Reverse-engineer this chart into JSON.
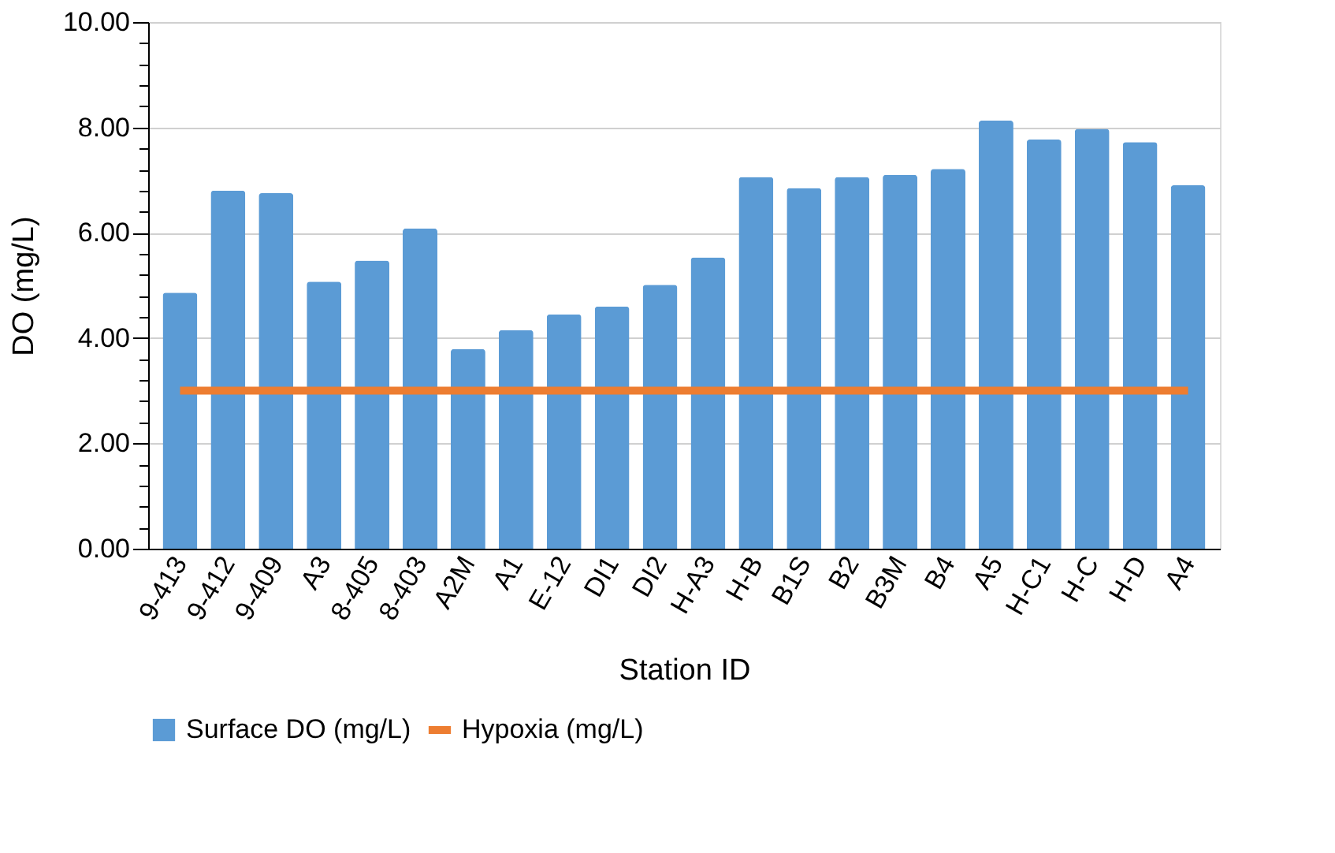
{
  "chart_data": {
    "type": "bar",
    "xlabel": "Station ID",
    "ylabel": "DO (mg/L)",
    "categories": [
      "9-413",
      "9-412",
      "9-409",
      "A3",
      "8-405",
      "8-403",
      "A2M",
      "A1",
      "E-12",
      "DI1",
      "DI2",
      "H-A3",
      "H-B",
      "B1S",
      "B2",
      "B3M",
      "B4",
      "A5",
      "H-C1",
      "H-C",
      "H-D",
      "A4"
    ],
    "series": [
      {
        "name": "Surface DO (mg/L)",
        "color": "#5b9bd5",
        "values": [
          4.86,
          6.8,
          6.75,
          5.07,
          5.47,
          6.08,
          3.79,
          4.15,
          4.45,
          4.6,
          5.01,
          5.53,
          7.06,
          6.85,
          7.06,
          7.1,
          7.21,
          8.13,
          7.77,
          7.97,
          7.72,
          6.9
        ]
      },
      {
        "name": "Hypoxia (mg/L)",
        "type": "line",
        "color": "#ed7d31",
        "values": [
          3,
          3,
          3,
          3,
          3,
          3,
          3,
          3,
          3,
          3,
          3,
          3,
          3,
          3,
          3,
          3,
          3,
          3,
          3,
          3,
          3,
          3
        ]
      }
    ],
    "ylim": [
      0,
      10
    ],
    "yticks": [
      {
        "value": 0,
        "label": "0.00"
      },
      {
        "value": 0.4,
        "label": null
      },
      {
        "value": 0.8,
        "label": null
      },
      {
        "value": 1.2,
        "label": null
      },
      {
        "value": 1.6,
        "label": null
      },
      {
        "value": 2,
        "label": "2.00"
      },
      {
        "value": 2.4,
        "label": null
      },
      {
        "value": 2.8,
        "label": null
      },
      {
        "value": 3.2,
        "label": null
      },
      {
        "value": 3.6,
        "label": null
      },
      {
        "value": 4,
        "label": "4.00"
      },
      {
        "value": 4.4,
        "label": null
      },
      {
        "value": 4.8,
        "label": null
      },
      {
        "value": 5.2,
        "label": null
      },
      {
        "value": 5.6,
        "label": null
      },
      {
        "value": 6,
        "label": "6.00"
      },
      {
        "value": 6.4,
        "label": null
      },
      {
        "value": 6.8,
        "label": null
      },
      {
        "value": 7.2,
        "label": null
      },
      {
        "value": 7.6,
        "label": null
      },
      {
        "value": 8,
        "label": "8.00"
      },
      {
        "value": 8.4,
        "label": null
      },
      {
        "value": 8.8,
        "label": null
      },
      {
        "value": 9.2,
        "label": null
      },
      {
        "value": 9.6,
        "label": null
      },
      {
        "value": 10,
        "label": "10.00"
      }
    ],
    "grid": "y",
    "legend": "bottom"
  }
}
